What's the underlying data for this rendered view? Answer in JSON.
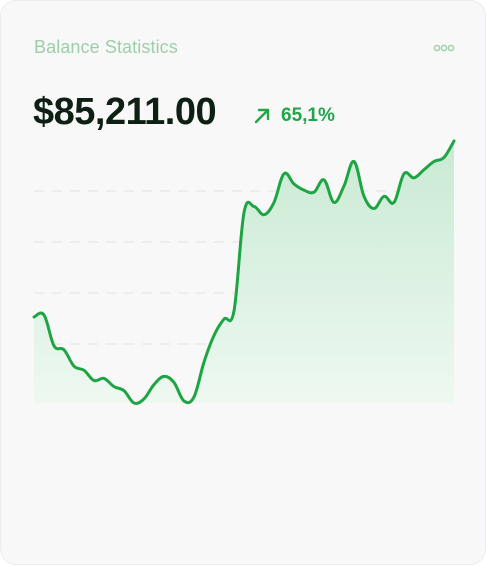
{
  "card": {
    "title": "Balance Statistics",
    "balance": "$85,211.00",
    "change_percent": "65,1%",
    "menu_icon": "more-horizontal-icon",
    "change_icon": "arrow-up-right-icon"
  },
  "colors": {
    "line": "#1fa443",
    "fill_top": "#c9ead3",
    "fill_bottom": "#eef8f1",
    "title": "#9bcfa8",
    "balance": "#0e1f14",
    "change": "#22a447",
    "gridline": "#e2e2e4"
  },
  "chart_data": {
    "type": "area",
    "series": [
      {
        "values": [
          36,
          37,
          22,
          20,
          12,
          10,
          5,
          6,
          2,
          0,
          -6,
          -4,
          3,
          7,
          4,
          -5,
          -3,
          14,
          27,
          35,
          39,
          87,
          90,
          86,
          92,
          106,
          101,
          98,
          97,
          103,
          92,
          100,
          112,
          95,
          89,
          95,
          92,
          106,
          104,
          108,
          112,
          114,
          122
        ]
      }
    ],
    "ylim": [
      -6,
      122
    ],
    "grid": true
  }
}
